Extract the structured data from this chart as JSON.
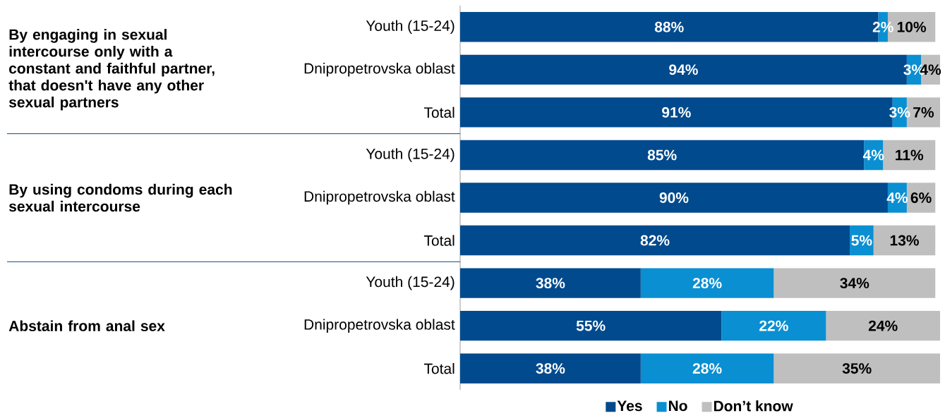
{
  "chart_data": {
    "type": "bar",
    "orientation": "horizontal",
    "stacked": true,
    "legend": "bottom",
    "categories": [
      "Youth (15-24)",
      "Dnipropetrovska oblast",
      "Total",
      "Youth (15-24)",
      "Dnipropetrovska oblast",
      "Total",
      "Youth (15-24)",
      "Dnipropetrovska oblast",
      "Total"
    ],
    "series": [
      {
        "name": "Yes",
        "color": "#004a8d",
        "values": [
          88,
          94,
          91,
          85,
          90,
          82,
          38,
          55,
          38
        ],
        "value_labels": [
          "88%",
          "94%",
          "91%",
          "85%",
          "90%",
          "82%",
          "38%",
          "55%",
          "38%"
        ]
      },
      {
        "name": "No",
        "color": "#0a8fd2",
        "values": [
          2,
          3,
          3,
          4,
          4,
          5,
          28,
          22,
          28
        ],
        "value_labels": [
          "2%",
          "3%",
          "3%",
          "4%",
          "4%",
          "5%",
          "28%",
          "22%",
          "28%"
        ]
      },
      {
        "name": "Don’t know",
        "color": "#bfbfbf",
        "values": [
          10,
          4,
          7,
          11,
          6,
          13,
          34,
          24,
          35
        ],
        "value_labels": [
          "10%",
          "4%",
          "7%",
          "11%",
          "6%",
          "13%",
          "34%",
          "24%",
          "35%"
        ]
      }
    ],
    "annotations": [
      "By engaging in sexual intercourse only with a constant and faithful partner, that doesn't have any other sexual partners",
      "By using condoms during each sexual intercourse",
      "Abstain from anal sex"
    ]
  }
}
